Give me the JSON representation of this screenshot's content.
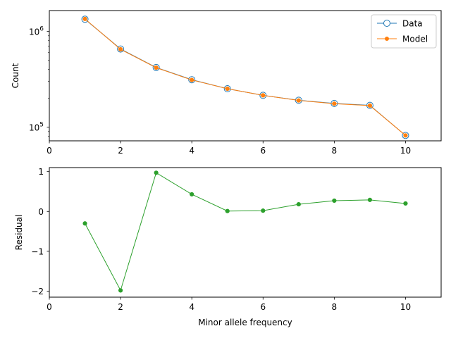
{
  "chart_data": [
    {
      "type": "line",
      "yscale": "log",
      "ylabel": "Count",
      "xlabel": "",
      "xlim": [
        0,
        11
      ],
      "ylim": [
        72000,
        1650000
      ],
      "xticks": [
        0,
        2,
        4,
        6,
        8,
        10
      ],
      "xtick_labels": [
        "0",
        "2",
        "4",
        "6",
        "8",
        "10"
      ],
      "yticks": [
        100000,
        1000000
      ],
      "ytick_base": "10",
      "ytick_exps": [
        "5",
        "6"
      ],
      "grid": false,
      "legend_position": "top-right",
      "x": [
        1,
        2,
        3,
        4,
        5,
        6,
        7,
        8,
        9,
        10
      ],
      "series": [
        {
          "name": "Data",
          "color": "#1f77b4",
          "marker": "open-circle",
          "values": [
            1340000,
            655000,
            420000,
            313000,
            252000,
            215000,
            191000,
            177000,
            169000,
            82000
          ]
        },
        {
          "name": "Model",
          "color": "#ff7f0e",
          "marker": "filled-dot",
          "values": [
            1350000,
            650000,
            418000,
            311000,
            252000,
            215000,
            190000,
            176000,
            168000,
            82000
          ]
        }
      ]
    },
    {
      "type": "line",
      "ylabel": "Residual",
      "xlabel": "Minor allele frequency",
      "xlim": [
        0,
        11
      ],
      "ylim": [
        -2.15,
        1.1
      ],
      "xticks": [
        0,
        2,
        4,
        6,
        8,
        10
      ],
      "xtick_labels": [
        "0",
        "2",
        "4",
        "6",
        "8",
        "10"
      ],
      "yticks": [
        -2,
        -1,
        0,
        1
      ],
      "ytick_labels": [
        "−2",
        "−1",
        "0",
        "1"
      ],
      "grid": false,
      "x": [
        1,
        2,
        3,
        4,
        5,
        6,
        7,
        8,
        9,
        10
      ],
      "series": [
        {
          "color": "#2ca02c",
          "marker": "filled-dot",
          "values": [
            -0.3,
            -1.98,
            0.97,
            0.43,
            0.01,
            0.02,
            0.18,
            0.27,
            0.29,
            0.2
          ]
        }
      ]
    }
  ]
}
